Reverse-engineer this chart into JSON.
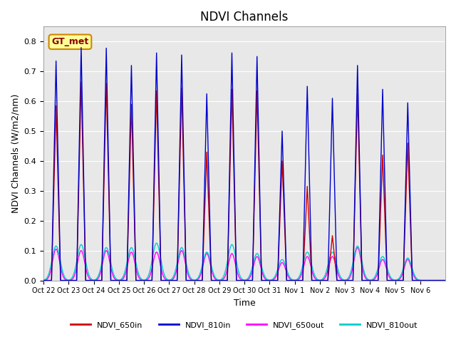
{
  "title": "NDVI Channels",
  "xlabel": "Time",
  "ylabel": "NDVI Channels (W/m2/nm)",
  "ylim": [
    0.0,
    0.85
  ],
  "yticks": [
    0.0,
    0.1,
    0.2,
    0.3,
    0.4,
    0.5,
    0.6,
    0.7,
    0.8
  ],
  "date_labels": [
    "Oct 22",
    "Oct 23",
    "Oct 24",
    "Oct 25",
    "Oct 26",
    "Oct 27",
    "Oct 28",
    "Oct 29",
    "Oct 30",
    "Oct 31",
    "Nov 1",
    "Nov 2",
    "Nov 3",
    "Nov 4",
    "Nov 5",
    "Nov 6"
  ],
  "gt_label": "GT_met",
  "colors": {
    "NDVI_650in": "#cc0000",
    "NDVI_810in": "#0000cc",
    "NDVI_650out": "#ff00ff",
    "NDVI_810out": "#00cccc"
  },
  "bg_color": "#e8e8e8",
  "fig_color": "#ffffff",
  "daily_peaks_810in": [
    0.735,
    0.78,
    0.778,
    0.72,
    0.762,
    0.755,
    0.625,
    0.762,
    0.75,
    0.5,
    0.65,
    0.61,
    0.72,
    0.64,
    0.595,
    0.0
  ],
  "daily_peaks_650in": [
    0.585,
    0.665,
    0.66,
    0.59,
    0.635,
    0.645,
    0.43,
    0.64,
    0.635,
    0.4,
    0.315,
    0.15,
    0.625,
    0.42,
    0.46,
    0.0
  ],
  "daily_peaks_650out": [
    0.105,
    0.1,
    0.1,
    0.095,
    0.095,
    0.1,
    0.09,
    0.09,
    0.08,
    0.06,
    0.08,
    0.08,
    0.11,
    0.07,
    0.07,
    0.0
  ],
  "daily_peaks_810out": [
    0.115,
    0.12,
    0.11,
    0.11,
    0.125,
    0.11,
    0.095,
    0.12,
    0.09,
    0.07,
    0.095,
    0.095,
    0.115,
    0.08,
    0.075,
    0.0
  ],
  "n_days": 16,
  "pts_per_day": 200
}
